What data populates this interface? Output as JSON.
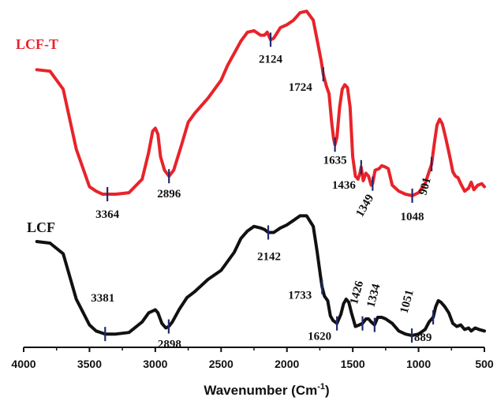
{
  "chart_data": {
    "type": "line",
    "title": "",
    "xlabel": "Wavenumber (Cm",
    "xlabel_sup": "-1",
    "ylabel": "",
    "xlim": [
      4000,
      500
    ],
    "x_reversed": true,
    "xticks": [
      "4000",
      "3500",
      "3000",
      "2500",
      "2000",
      "1500",
      "1000",
      "500"
    ],
    "grid": false,
    "y_axis_visible": false,
    "series": [
      {
        "name": "LCF-T",
        "color": "#e8232a",
        "points": [
          [
            3900,
            0.83
          ],
          [
            3800,
            0.82
          ],
          [
            3700,
            0.7
          ],
          [
            3600,
            0.3
          ],
          [
            3500,
            0.05
          ],
          [
            3450,
            0.02
          ],
          [
            3400,
            0.0
          ],
          [
            3364,
            0.0
          ],
          [
            3300,
            0.0
          ],
          [
            3200,
            0.01
          ],
          [
            3100,
            0.1
          ],
          [
            3050,
            0.28
          ],
          [
            3020,
            0.42
          ],
          [
            3000,
            0.44
          ],
          [
            2980,
            0.4
          ],
          [
            2960,
            0.25
          ],
          [
            2930,
            0.16
          ],
          [
            2896,
            0.12
          ],
          [
            2860,
            0.16
          ],
          [
            2800,
            0.33
          ],
          [
            2750,
            0.48
          ],
          [
            2700,
            0.54
          ],
          [
            2600,
            0.64
          ],
          [
            2500,
            0.76
          ],
          [
            2450,
            0.86
          ],
          [
            2400,
            0.94
          ],
          [
            2350,
            1.02
          ],
          [
            2300,
            1.08
          ],
          [
            2250,
            1.09
          ],
          [
            2200,
            1.06
          ],
          [
            2170,
            1.06
          ],
          [
            2150,
            1.08
          ],
          [
            2124,
            1.03
          ],
          [
            2100,
            1.04
          ],
          [
            2050,
            1.11
          ],
          [
            2000,
            1.13
          ],
          [
            1950,
            1.16
          ],
          [
            1900,
            1.21
          ],
          [
            1850,
            1.22
          ],
          [
            1800,
            1.16
          ],
          [
            1760,
            0.98
          ],
          [
            1740,
            0.89
          ],
          [
            1724,
            0.8
          ],
          [
            1700,
            0.72
          ],
          [
            1680,
            0.67
          ],
          [
            1660,
            0.48
          ],
          [
            1645,
            0.37
          ],
          [
            1635,
            0.33
          ],
          [
            1620,
            0.38
          ],
          [
            1600,
            0.58
          ],
          [
            1580,
            0.7
          ],
          [
            1560,
            0.73
          ],
          [
            1540,
            0.71
          ],
          [
            1520,
            0.58
          ],
          [
            1500,
            0.25
          ],
          [
            1480,
            0.12
          ],
          [
            1460,
            0.1
          ],
          [
            1445,
            0.14
          ],
          [
            1436,
            0.18
          ],
          [
            1420,
            0.09
          ],
          [
            1400,
            0.14
          ],
          [
            1380,
            0.12
          ],
          [
            1360,
            0.06
          ],
          [
            1349,
            0.07
          ],
          [
            1330,
            0.16
          ],
          [
            1300,
            0.17
          ],
          [
            1280,
            0.19
          ],
          [
            1250,
            0.18
          ],
          [
            1230,
            0.17
          ],
          [
            1200,
            0.06
          ],
          [
            1150,
            0.02
          ],
          [
            1100,
            0.0
          ],
          [
            1048,
            -0.01
          ],
          [
            1000,
            0.01
          ],
          [
            950,
            0.07
          ],
          [
            920,
            0.15
          ],
          [
            901,
            0.2
          ],
          [
            880,
            0.34
          ],
          [
            860,
            0.46
          ],
          [
            840,
            0.5
          ],
          [
            820,
            0.47
          ],
          [
            800,
            0.4
          ],
          [
            780,
            0.32
          ],
          [
            760,
            0.24
          ],
          [
            740,
            0.15
          ],
          [
            720,
            0.12
          ],
          [
            700,
            0.11
          ],
          [
            680,
            0.07
          ],
          [
            650,
            0.02
          ],
          [
            620,
            0.04
          ],
          [
            600,
            0.08
          ],
          [
            580,
            0.03
          ],
          [
            550,
            0.06
          ],
          [
            520,
            0.07
          ],
          [
            500,
            0.05
          ]
        ]
      },
      {
        "name": "LCF",
        "color": "#111111",
        "points": [
          [
            3900,
            0.63
          ],
          [
            3800,
            0.62
          ],
          [
            3700,
            0.55
          ],
          [
            3600,
            0.25
          ],
          [
            3500,
            0.08
          ],
          [
            3450,
            0.04
          ],
          [
            3381,
            0.02
          ],
          [
            3300,
            0.02
          ],
          [
            3200,
            0.03
          ],
          [
            3100,
            0.1
          ],
          [
            3050,
            0.16
          ],
          [
            3000,
            0.18
          ],
          [
            2980,
            0.16
          ],
          [
            2950,
            0.09
          ],
          [
            2920,
            0.06
          ],
          [
            2898,
            0.07
          ],
          [
            2870,
            0.1
          ],
          [
            2820,
            0.18
          ],
          [
            2760,
            0.26
          ],
          [
            2700,
            0.3
          ],
          [
            2600,
            0.38
          ],
          [
            2500,
            0.44
          ],
          [
            2400,
            0.56
          ],
          [
            2350,
            0.65
          ],
          [
            2300,
            0.7
          ],
          [
            2250,
            0.73
          ],
          [
            2200,
            0.72
          ],
          [
            2170,
            0.71
          ],
          [
            2142,
            0.69
          ],
          [
            2100,
            0.69
          ],
          [
            2050,
            0.72
          ],
          [
            2000,
            0.74
          ],
          [
            1950,
            0.77
          ],
          [
            1900,
            0.8
          ],
          [
            1850,
            0.8
          ],
          [
            1800,
            0.73
          ],
          [
            1770,
            0.56
          ],
          [
            1745,
            0.4
          ],
          [
            1733,
            0.33
          ],
          [
            1715,
            0.27
          ],
          [
            1690,
            0.24
          ],
          [
            1670,
            0.14
          ],
          [
            1650,
            0.11
          ],
          [
            1620,
            0.09
          ],
          [
            1590,
            0.15
          ],
          [
            1570,
            0.22
          ],
          [
            1550,
            0.25
          ],
          [
            1530,
            0.23
          ],
          [
            1510,
            0.16
          ],
          [
            1480,
            0.07
          ],
          [
            1450,
            0.08
          ],
          [
            1426,
            0.09
          ],
          [
            1400,
            0.12
          ],
          [
            1380,
            0.12
          ],
          [
            1360,
            0.1
          ],
          [
            1334,
            0.08
          ],
          [
            1310,
            0.13
          ],
          [
            1280,
            0.13
          ],
          [
            1250,
            0.12
          ],
          [
            1200,
            0.09
          ],
          [
            1150,
            0.04
          ],
          [
            1100,
            0.02
          ],
          [
            1051,
            0.01
          ],
          [
            1000,
            0.02
          ],
          [
            950,
            0.05
          ],
          [
            920,
            0.1
          ],
          [
            889,
            0.13
          ],
          [
            870,
            0.2
          ],
          [
            850,
            0.24
          ],
          [
            830,
            0.23
          ],
          [
            800,
            0.2
          ],
          [
            770,
            0.16
          ],
          [
            740,
            0.09
          ],
          [
            710,
            0.07
          ],
          [
            680,
            0.08
          ],
          [
            650,
            0.05
          ],
          [
            620,
            0.06
          ],
          [
            600,
            0.04
          ],
          [
            570,
            0.06
          ],
          [
            540,
            0.05
          ],
          [
            500,
            0.04
          ]
        ]
      }
    ],
    "peak_labels": [
      {
        "series": "LCF-T",
        "x": 3364,
        "label": "3364"
      },
      {
        "series": "LCF-T",
        "x": 2896,
        "label": "2896"
      },
      {
        "series": "LCF-T",
        "x": 2124,
        "label": "2124"
      },
      {
        "series": "LCF-T",
        "x": 1724,
        "label": "1724"
      },
      {
        "series": "LCF-T",
        "x": 1635,
        "label": "1635"
      },
      {
        "series": "LCF-T",
        "x": 1436,
        "label": "1436"
      },
      {
        "series": "LCF-T",
        "x": 1349,
        "label": "1349"
      },
      {
        "series": "LCF-T",
        "x": 1048,
        "label": "1048"
      },
      {
        "series": "LCF-T",
        "x": 901,
        "label": "901"
      },
      {
        "series": "LCF",
        "x": 3381,
        "label": "3381"
      },
      {
        "series": "LCF",
        "x": 2898,
        "label": "2898"
      },
      {
        "series": "LCF",
        "x": 2142,
        "label": "2142"
      },
      {
        "series": "LCF",
        "x": 1733,
        "label": "1733"
      },
      {
        "series": "LCF",
        "x": 1620,
        "label": "1620"
      },
      {
        "series": "LCF",
        "x": 1426,
        "label": "1426"
      },
      {
        "series": "LCF",
        "x": 1334,
        "label": "1334"
      },
      {
        "series": "LCF",
        "x": 1051,
        "label": "1051"
      },
      {
        "series": "LCF",
        "x": 889,
        "label": "889"
      }
    ],
    "marker_color": "#1f2a6e"
  }
}
